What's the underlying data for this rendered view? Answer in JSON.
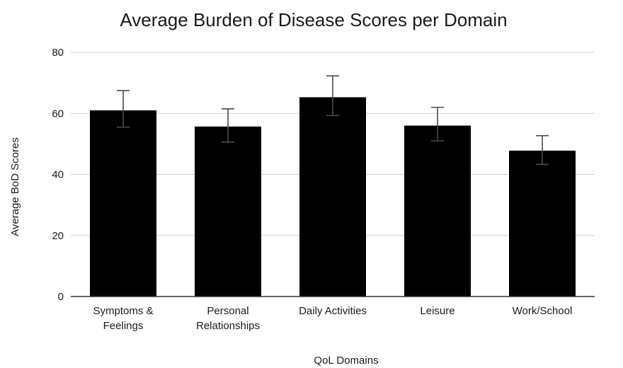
{
  "chart_data": {
    "type": "bar",
    "title": "Average Burden of Disease Scores per Domain",
    "xlabel": "QoL Domains",
    "ylabel": "Average BoD Scores",
    "ylim": [
      0,
      80
    ],
    "yticks": [
      0,
      20,
      40,
      60,
      80
    ],
    "grid": true,
    "legend": "none",
    "bar_color": "#000000",
    "categories": [
      [
        "Symptoms &",
        "Feelings"
      ],
      [
        "Personal",
        "Relationships"
      ],
      [
        "Daily Activities"
      ],
      [
        "Leisure"
      ],
      [
        "Work/School"
      ]
    ],
    "values": [
      61,
      55.7,
      65.3,
      56,
      47.8
    ],
    "error_low": [
      55.5,
      50.6,
      59.3,
      51,
      43.3
    ],
    "error_high": [
      67.5,
      61.5,
      72.3,
      62,
      52.7
    ]
  }
}
